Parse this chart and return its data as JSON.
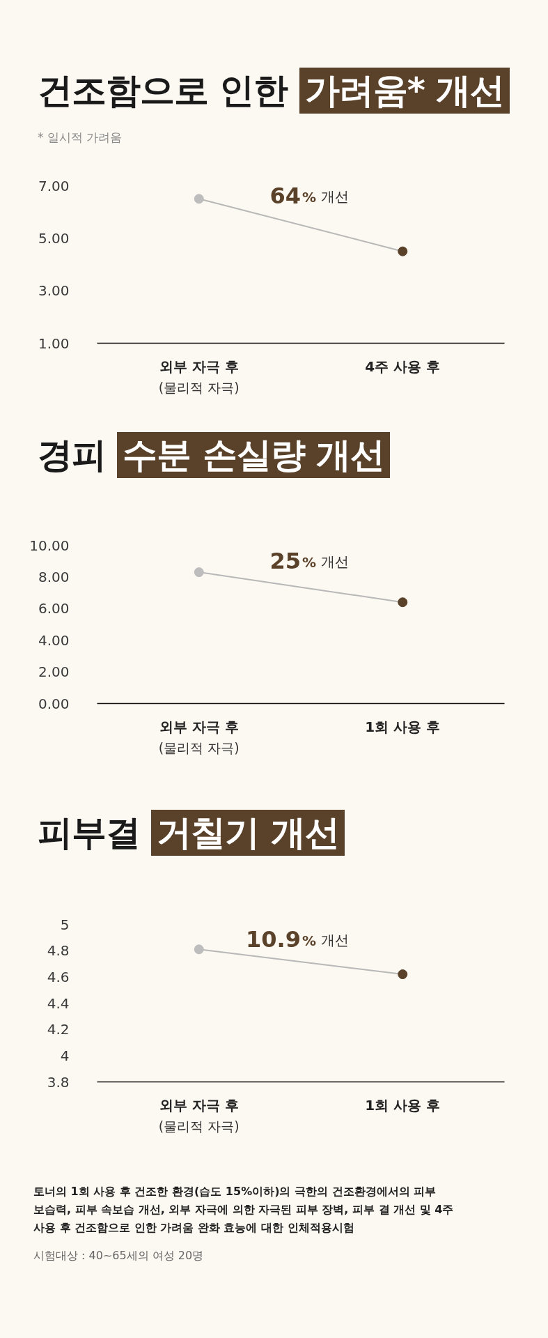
{
  "chart_data": [
    {
      "type": "line",
      "title": "건조함으로 인한 가려움* 개선",
      "subtitle": "* 일시적 가려움",
      "categories": [
        "외부 자극 후\n(물리적 자극)",
        "4주 사용 후"
      ],
      "series": [
        {
          "color": "#b8b8b8",
          "colors": [
            "#bdbdbd",
            "#5a4129"
          ],
          "values": [
            6.5,
            4.5
          ]
        }
      ],
      "ylim": [
        1,
        7
      ],
      "yticks": [
        {
          "value": 1,
          "label": "1.00"
        },
        {
          "value": 3,
          "label": "3.00"
        },
        {
          "value": 5,
          "label": "5.00"
        },
        {
          "value": 7,
          "label": "7.00"
        }
      ],
      "marker": "circle",
      "annotations": [
        "64% 개선"
      ]
    },
    {
      "type": "line",
      "title": "경피 수분 손실량 개선",
      "categories": [
        "외부 자극 후\n(물리적 자극)",
        "1회 사용 후"
      ],
      "series": [
        {
          "color": "#b8b8b8",
          "colors": [
            "#bdbdbd",
            "#5a4129"
          ],
          "values": [
            8.3,
            6.4
          ]
        }
      ],
      "ylim": [
        0,
        10
      ],
      "yticks": [
        {
          "value": 0,
          "label": "0.00"
        },
        {
          "value": 2,
          "label": "2.00"
        },
        {
          "value": 4,
          "label": "4.00"
        },
        {
          "value": 6,
          "label": "6.00"
        },
        {
          "value": 8,
          "label": "8.00"
        },
        {
          "value": 10,
          "label": "10.00"
        }
      ],
      "marker": "circle",
      "annotations": [
        "25% 개선"
      ]
    },
    {
      "type": "line",
      "title": "피부결 거칠기 개선",
      "categories": [
        "외부 자극 후\n(물리적 자극)",
        "1회 사용 후"
      ],
      "series": [
        {
          "color": "#b8b8b8",
          "colors": [
            "#bdbdbd",
            "#5a4129"
          ],
          "values": [
            4.81,
            4.62
          ]
        }
      ],
      "ylim": [
        3.8,
        5
      ],
      "yticks": [
        3.8,
        4,
        4.2,
        4.4,
        4.6,
        4.8,
        5
      ],
      "marker": "circle",
      "annotations": [
        "10.9% 개선",
        "토너의 1회 사용 후 건조한 환경(습도 15%이하)의 극한의 건조환경에서의 피부 보습력, 피부 속보습 개선, 외부 자극에 의한 자극된 피부 장벽, 피부 결 개선 및 4주 사용 후 건조함으로 인한 가려움 완화 효능에 대한 인체적용시험",
        "시험대상 : 40~65세의 여성 20명"
      ]
    }
  ]
}
